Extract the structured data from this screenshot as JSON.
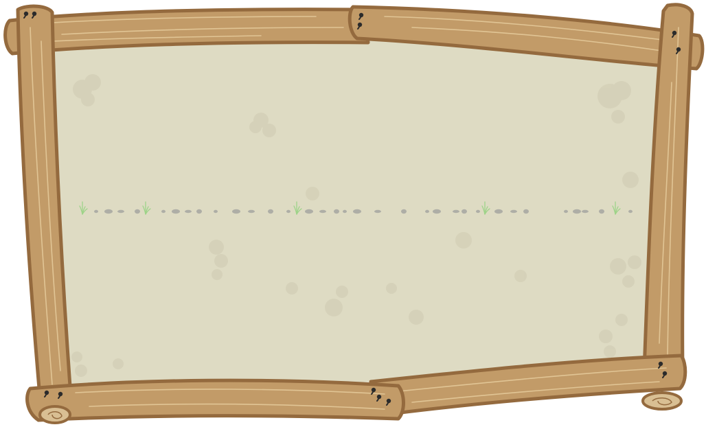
{
  "board": {
    "panel_color": "#dedbc3",
    "blotch_color": "#cfcab1",
    "log_fill": "#c29b68",
    "log_fill_light": "#cba676",
    "log_outline": "#946a3e",
    "log_grain": "#e6cc9e",
    "end_grain": "#d9bf93",
    "nail_color": "#2b2b2b",
    "pebble_color": "#aeaea6",
    "grass_color": "#9ed389"
  },
  "icons": {
    "frame": "wooden-log-frame",
    "nail": "nail-icon",
    "pebble": "pebble",
    "grass": "grass-tuft"
  }
}
